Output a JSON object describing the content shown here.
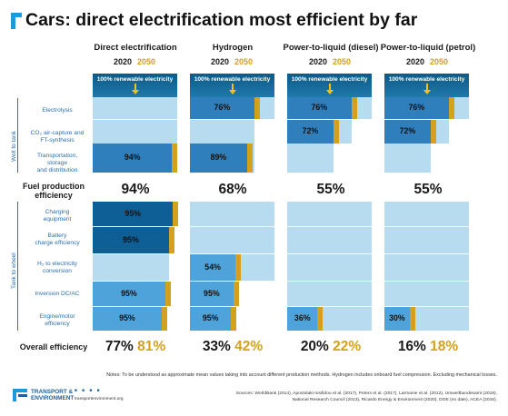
{
  "title": "Cars: direct electrification most efficient by far",
  "years": {
    "y2020": "2020",
    "y2050": "2050"
  },
  "banner_text": "100% renewable electricity",
  "side_labels": {
    "well": "Well to tank",
    "wheel": "Tank to wheel"
  },
  "row_labels": {
    "electrolysis": "Electrolysis",
    "co2_1": "CO₂ air-capture and",
    "co2_2": "FT-synthesis",
    "transport_1": "Transportation,",
    "transport_2": "storage",
    "transport_3": "and distribution",
    "fuel_1": "Fuel production",
    "fuel_2": "efficiency",
    "charging_1": "Charging",
    "charging_2": "equipment",
    "battery_1": "Battery",
    "battery_2": "charge efficiency",
    "h2_1": "H₂ to electricity",
    "h2_2": "conversion",
    "inversion": "Inversion DC/AC",
    "engine_1": "Engine/motor",
    "engine_2": "efficiency",
    "overall": "Overall efficiency"
  },
  "colors": {
    "dark": "#0f5f97",
    "mid": "#2f7fbd",
    "light": "#4fa3db",
    "pale": "#b7dcef",
    "gold": "#d4a11e"
  },
  "chart_data": {
    "type": "bar",
    "columns": [
      {
        "name": "Direct electrification",
        "fuel_production": "94%",
        "steps": {
          "transport": "94%",
          "charging": "95%",
          "battery": "95%",
          "inversion": "95%",
          "engine": "95%"
        },
        "overall_2020": "77%",
        "overall_2050": "81%"
      },
      {
        "name": "Hydrogen",
        "fuel_production": "68%",
        "steps": {
          "electrolysis": "76%",
          "transport": "89%",
          "h2": "54%",
          "inversion": "95%",
          "engine": "95%"
        },
        "overall_2020": "33%",
        "overall_2050": "42%"
      },
      {
        "name": "Power-to-liquid (diesel)",
        "fuel_production": "55%",
        "steps": {
          "electrolysis": "76%",
          "co2": "72%",
          "engine": "36%"
        },
        "overall_2020": "20%",
        "overall_2050": "22%"
      },
      {
        "name": "Power-to-liquid (petrol)",
        "fuel_production": "55%",
        "steps": {
          "electrolysis": "76%",
          "co2": "72%",
          "engine": "30%"
        },
        "overall_2020": "16%",
        "overall_2050": "18%"
      }
    ]
  },
  "notes": "Notes: To be understood as approximate mean values taking into account different production methods. Hydrogen includes onboard fuel compression. Excluding mechanical losses.",
  "sources_1": "Sources: WorldBank (2014), Apostolaki-Iosifidou et al. (2017), Peters et al. (2017), Larmanie et al. (2012), Umweltbundesamt (2019),",
  "sources_2": "National Research Council (2013), Ricardo Energy & Environment (2020), DOE (no date), ACEA (2016).",
  "logo": {
    "line1": "TRANSPORT &",
    "line2": "ENVIRONMENT",
    "url": "transportenvironment.org",
    "social": "■ ■ ■ ■"
  }
}
